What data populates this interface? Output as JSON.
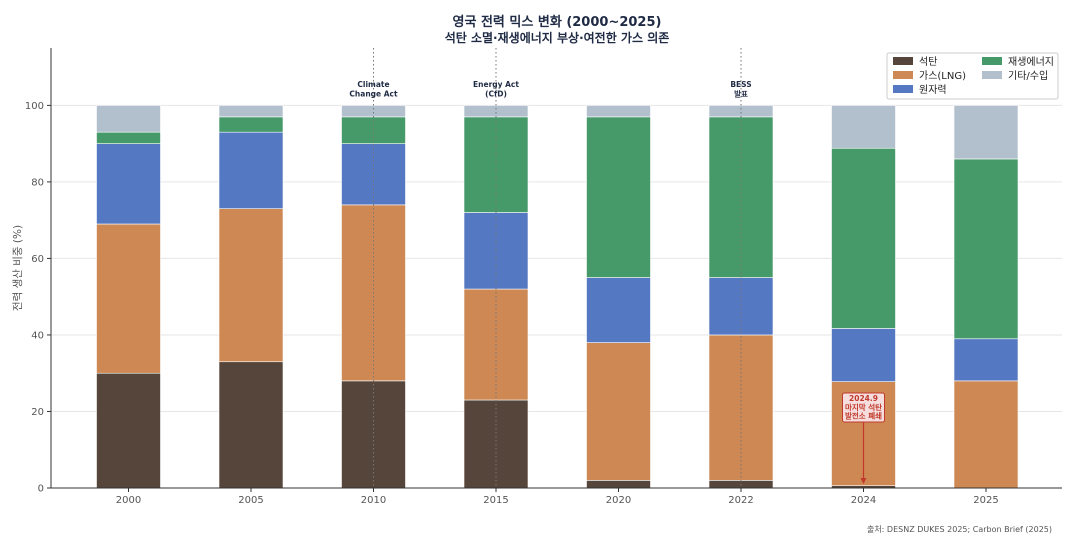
{
  "chart_data": {
    "type": "bar",
    "stacked": true,
    "title": "영국 전력 믹스 변화 (2000~2025)",
    "subtitle": "석탄 소멸·재생에너지 부상·여전한 가스 의존",
    "ylabel": "전력 생산 비중 (%)",
    "ylim": [
      0,
      115
    ],
    "yticks": [
      0,
      20,
      40,
      60,
      80,
      100
    ],
    "grid": true,
    "legend_position": "top-right",
    "categories": [
      "2000",
      "2005",
      "2010",
      "2015",
      "2020",
      "2022",
      "2024",
      "2025"
    ],
    "series": [
      {
        "name": "석탄",
        "color": "#55453a",
        "values": [
          30,
          33,
          28,
          23,
          2,
          2,
          0.6,
          0
        ]
      },
      {
        "name": "가스(LNG)",
        "color": "#cd8854",
        "values": [
          39,
          40,
          46,
          29,
          36,
          38,
          27.2,
          28
        ]
      },
      {
        "name": "원자력",
        "color": "#5578c2",
        "values": [
          21,
          20,
          16,
          20,
          17,
          15,
          13.9,
          11
        ]
      },
      {
        "name": "재생에너지",
        "color": "#469a6a",
        "values": [
          3,
          4,
          7,
          25,
          42,
          42,
          47.1,
          47
        ]
      },
      {
        "name": "기타/수입",
        "color": "#b2c0ce",
        "values": [
          7,
          3,
          3,
          3,
          3,
          3,
          11.2,
          14
        ]
      }
    ],
    "annotations": [
      {
        "category": "2010",
        "lines": [
          "Climate",
          "Change Act"
        ]
      },
      {
        "category": "2015",
        "lines": [
          "Energy Act",
          "(CfD)"
        ]
      },
      {
        "category": "2022",
        "lines": [
          "BESS",
          "발표"
        ]
      }
    ],
    "callout": {
      "category": "2024",
      "lines": [
        "2024.9",
        "마지막 석탄",
        "발전소 폐쇄"
      ]
    },
    "source": "출처: DESNZ DUKES 2025; Carbon Brief (2025)"
  }
}
